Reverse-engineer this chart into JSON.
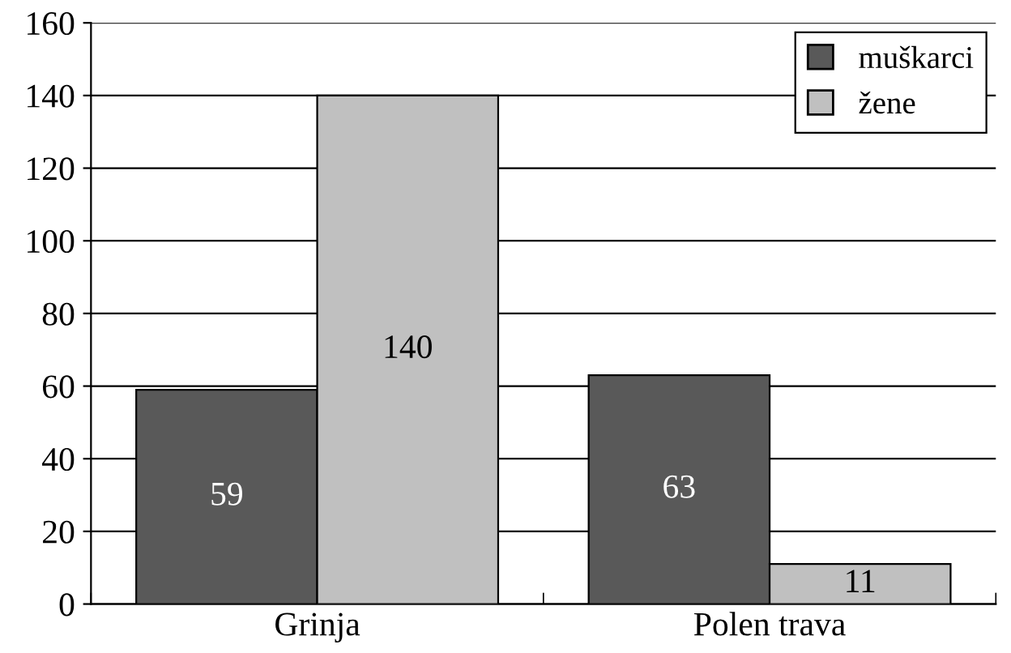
{
  "chart_data": {
    "type": "bar",
    "categories": [
      "Grinja",
      "Polen trava"
    ],
    "series": [
      {
        "name": "muškarci",
        "color": "#595959",
        "values": [
          59,
          63
        ]
      },
      {
        "name": "žene",
        "color": "#c0c0c0",
        "values": [
          140,
          11
        ]
      }
    ],
    "ylim": [
      0,
      160
    ],
    "yticks": [
      0,
      20,
      40,
      60,
      80,
      100,
      120,
      140,
      160
    ],
    "grid": "y",
    "legend": "top right",
    "data_labels": true
  }
}
